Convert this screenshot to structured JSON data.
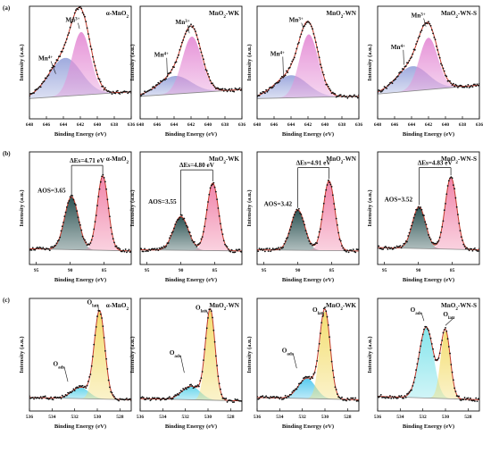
{
  "figure": {
    "row_labels": [
      "(a)",
      "(b)",
      "(c)"
    ],
    "xlabel": "Binding Energy (eV)",
    "ylabel": "Intensity (a.u.)"
  },
  "chart_data": [
    {
      "id": "a1",
      "type": "line",
      "row": 0,
      "col": 0,
      "sample": "α-MnO2",
      "xlim": [
        648,
        636
      ],
      "xticks": [
        648,
        646,
        644,
        642,
        640,
        638,
        636
      ],
      "ylim": [
        0,
        1
      ],
      "baseline": [
        0.18,
        0.24
      ],
      "peaks": [
        {
          "label": "Mn4+",
          "center": 643.8,
          "fwhm": 4.5,
          "height": 0.34,
          "color": "#9aa6dc"
        },
        {
          "label": "Mn3+",
          "center": 641.9,
          "fwhm": 2.6,
          "height": 0.56,
          "color": "#e58fd6"
        }
      ],
      "annotations": [
        {
          "text": "Mn3+",
          "tx": 642.9,
          "ty": 0.86,
          "ax": 642.1,
          "ay": 0.8
        },
        {
          "text": "Mn4+",
          "tx": 646.1,
          "ty": 0.52,
          "ax": 644.9,
          "ay": 0.4
        }
      ]
    },
    {
      "id": "a2",
      "type": "line",
      "row": 0,
      "col": 1,
      "sample": "MnO2-WK",
      "xlim": [
        648,
        636
      ],
      "xticks": [
        648,
        646,
        644,
        642,
        640,
        638,
        636
      ],
      "ylim": [
        0,
        1
      ],
      "baseline": [
        0.2,
        0.26
      ],
      "peaks": [
        {
          "label": "Mn4+",
          "center": 643.9,
          "fwhm": 4.5,
          "height": 0.16,
          "color": "#9aa6dc"
        },
        {
          "label": "Mn3+",
          "center": 641.9,
          "fwhm": 2.7,
          "height": 0.5,
          "color": "#e58fd6"
        }
      ],
      "annotations": [
        {
          "text": "Mn3+",
          "tx": 643.0,
          "ty": 0.84,
          "ax": 642.2,
          "ay": 0.76
        },
        {
          "text": "Mn4+",
          "tx": 645.5,
          "ty": 0.55,
          "ax": 644.8,
          "ay": 0.38
        }
      ]
    },
    {
      "id": "a3",
      "type": "line",
      "row": 0,
      "col": 2,
      "sample": "MnO2-WN",
      "xlim": [
        648,
        636
      ],
      "xticks": [
        648,
        646,
        644,
        642,
        640,
        638,
        636
      ],
      "ylim": [
        0,
        1
      ],
      "baseline": [
        0.18,
        0.2
      ],
      "peaks": [
        {
          "label": "Mn4+",
          "center": 644.0,
          "fwhm": 4.6,
          "height": 0.2,
          "color": "#9aa6dc"
        },
        {
          "label": "Mn3+",
          "center": 641.9,
          "fwhm": 2.6,
          "height": 0.56,
          "color": "#e58fd6"
        }
      ],
      "annotations": [
        {
          "text": "Mn3+",
          "tx": 643.4,
          "ty": 0.86,
          "ax": 642.5,
          "ay": 0.8
        },
        {
          "text": "Mn4+",
          "tx": 645.6,
          "ty": 0.56,
          "ax": 644.9,
          "ay": 0.38
        }
      ]
    },
    {
      "id": "a4",
      "type": "line",
      "row": 0,
      "col": 3,
      "sample": "MnO2-WN-S",
      "xlim": [
        648,
        636
      ],
      "xticks": [
        648,
        646,
        644,
        642,
        640,
        638,
        636
      ],
      "ylim": [
        0,
        1
      ],
      "baseline": [
        0.22,
        0.3
      ],
      "peaks": [
        {
          "label": "Mn4+",
          "center": 643.9,
          "fwhm": 4.4,
          "height": 0.22,
          "color": "#9aa6dc"
        },
        {
          "label": "Mn3+",
          "center": 642.0,
          "fwhm": 2.6,
          "height": 0.46,
          "color": "#e58fd6"
        }
      ],
      "annotations": [
        {
          "text": "Mn3+",
          "tx": 643.2,
          "ty": 0.9,
          "ax": 642.3,
          "ay": 0.82
        },
        {
          "text": "Mn4+",
          "tx": 645.6,
          "ty": 0.62,
          "ax": 644.9,
          "ay": 0.48
        }
      ]
    },
    {
      "id": "b1",
      "type": "line",
      "row": 1,
      "col": 0,
      "sample": "α-MnO2",
      "xlim": [
        96,
        81
      ],
      "xticks": [
        95,
        90,
        85
      ],
      "ylim": [
        0,
        1
      ],
      "baseline": [
        0.14,
        0.12
      ],
      "peaks": [
        {
          "label": "",
          "center": 89.8,
          "fwhm": 2.4,
          "height": 0.47,
          "color": "#234b4b"
        },
        {
          "label": "",
          "center": 85.2,
          "fwhm": 1.9,
          "height": 0.66,
          "color": "#f07fa6"
        }
      ],
      "annotations": [
        {
          "text": "AOS=3.65",
          "tx": 94.8,
          "ty": 0.64
        }
      ],
      "delta": {
        "text": "ΔEs=4.71 eV",
        "x1": 89.8,
        "x2": 85.2,
        "y": 0.88
      }
    },
    {
      "id": "b2",
      "type": "line",
      "row": 1,
      "col": 1,
      "sample": "MnO2-WK",
      "xlim": [
        96,
        81
      ],
      "xticks": [
        95,
        90,
        85
      ],
      "ylim": [
        0,
        1
      ],
      "baseline": [
        0.13,
        0.12
      ],
      "peaks": [
        {
          "label": "",
          "center": 90.0,
          "fwhm": 2.6,
          "height": 0.3,
          "color": "#234b4b"
        },
        {
          "label": "",
          "center": 85.3,
          "fwhm": 2.0,
          "height": 0.6,
          "color": "#f07fa6"
        }
      ],
      "annotations": [
        {
          "text": "AOS=3.55",
          "tx": 94.8,
          "ty": 0.54
        }
      ],
      "delta": {
        "text": "ΔEs=4.80 eV",
        "x1": 90.0,
        "x2": 85.3,
        "y": 0.84
      }
    },
    {
      "id": "b3",
      "type": "line",
      "row": 1,
      "col": 2,
      "sample": "MnO2-WN",
      "xlim": [
        96,
        81
      ],
      "xticks": [
        95,
        90,
        85
      ],
      "ylim": [
        0,
        1
      ],
      "baseline": [
        0.13,
        0.12
      ],
      "peaks": [
        {
          "label": "",
          "center": 90.0,
          "fwhm": 2.4,
          "height": 0.36,
          "color": "#234b4b"
        },
        {
          "label": "",
          "center": 85.4,
          "fwhm": 2.0,
          "height": 0.62,
          "color": "#f07fa6"
        }
      ],
      "annotations": [
        {
          "text": "AOS=3.42",
          "tx": 95.0,
          "ty": 0.52
        }
      ],
      "delta": {
        "text": "ΔEs=4.91 eV",
        "x1": 90.0,
        "x2": 85.4,
        "y": 0.86
      }
    },
    {
      "id": "b4",
      "type": "line",
      "row": 1,
      "col": 3,
      "sample": "MnO2-WN-S",
      "xlim": [
        96,
        81
      ],
      "xticks": [
        95,
        90,
        85
      ],
      "ylim": [
        0,
        1
      ],
      "baseline": [
        0.15,
        0.13
      ],
      "peaks": [
        {
          "label": "",
          "center": 89.9,
          "fwhm": 2.3,
          "height": 0.37,
          "color": "#234b4b"
        },
        {
          "label": "",
          "center": 85.2,
          "fwhm": 2.0,
          "height": 0.64,
          "color": "#f07fa6"
        }
      ],
      "annotations": [
        {
          "text": "AOS=3.52",
          "tx": 95.0,
          "ty": 0.56
        }
      ],
      "delta": {
        "text": "ΔEs=4.83 eV",
        "x1": 89.9,
        "x2": 85.2,
        "y": 0.86
      }
    },
    {
      "id": "c1",
      "type": "line",
      "row": 2,
      "col": 0,
      "sample": "α-MnO2",
      "xlim": [
        536,
        527
      ],
      "xticks": [
        536,
        534,
        532,
        530,
        528
      ],
      "ylim": [
        0,
        1
      ],
      "baseline": [
        0.12,
        0.1
      ],
      "peaks": [
        {
          "label": "Oads",
          "center": 531.5,
          "fwhm": 1.8,
          "height": 0.1,
          "color": "#5fd3ea"
        },
        {
          "label": "Olatt",
          "center": 529.8,
          "fwhm": 1.1,
          "height": 0.78,
          "color": "#f3dc6a"
        }
      ],
      "annotations": [
        {
          "text": "Olatt",
          "tx": 530.4,
          "ty": 0.95,
          "ax": 529.9,
          "ay": 0.89
        },
        {
          "text": "Oads",
          "tx": 533.4,
          "ty": 0.4,
          "ax": 532.6,
          "ay": 0.26
        }
      ]
    },
    {
      "id": "c2",
      "type": "line",
      "row": 2,
      "col": 1,
      "sample": "MnO2-WN",
      "xlim": [
        536,
        527
      ],
      "xticks": [
        536,
        534,
        532,
        530,
        528
      ],
      "ylim": [
        0,
        1
      ],
      "baseline": [
        0.11,
        0.09
      ],
      "peaks": [
        {
          "label": "Oads",
          "center": 531.5,
          "fwhm": 1.9,
          "height": 0.12,
          "color": "#5fd3ea"
        },
        {
          "label": "Olatt",
          "center": 529.8,
          "fwhm": 1.0,
          "height": 0.8,
          "color": "#f3dc6a"
        }
      ],
      "annotations": [
        {
          "text": "Olatt",
          "tx": 530.6,
          "ty": 0.9,
          "ax": 530.0,
          "ay": 0.86
        },
        {
          "text": "Oads",
          "tx": 532.9,
          "ty": 0.5,
          "ax": 532.1,
          "ay": 0.34
        }
      ]
    },
    {
      "id": "c3",
      "type": "line",
      "row": 2,
      "col": 2,
      "sample": "MnO2-WK",
      "xlim": [
        536,
        527
      ],
      "xticks": [
        536,
        534,
        532,
        530,
        528
      ],
      "ylim": [
        0,
        1
      ],
      "baseline": [
        0.12,
        0.1
      ],
      "peaks": [
        {
          "label": "Oads",
          "center": 531.6,
          "fwhm": 1.8,
          "height": 0.18,
          "color": "#4fc8ee"
        },
        {
          "label": "Olatt",
          "center": 530.0,
          "fwhm": 1.1,
          "height": 0.78,
          "color": "#f3dc6a"
        }
      ],
      "annotations": [
        {
          "text": "Olatt",
          "tx": 530.6,
          "ty": 0.88,
          "ax": 530.1,
          "ay": 0.84
        },
        {
          "text": "Oads",
          "tx": 533.3,
          "ty": 0.52,
          "ax": 532.5,
          "ay": 0.38
        }
      ]
    },
    {
      "id": "c4",
      "type": "line",
      "row": 2,
      "col": 3,
      "sample": "MnO2-WN-S",
      "xlim": [
        536,
        527
      ],
      "xticks": [
        536,
        534,
        532,
        530,
        528
      ],
      "ylim": [
        0,
        1
      ],
      "baseline": [
        0.13,
        0.1
      ],
      "peaks": [
        {
          "label": "Oads",
          "center": 531.7,
          "fwhm": 1.5,
          "height": 0.63,
          "color": "#7fe3ea"
        },
        {
          "label": "Olatt",
          "center": 530.0,
          "fwhm": 1.0,
          "height": 0.6,
          "color": "#f3dc6a"
        }
      ],
      "annotations": [
        {
          "text": "Oads",
          "tx": 532.6,
          "ty": 0.88,
          "ax": 531.9,
          "ay": 0.8
        },
        {
          "text": "Olatt",
          "tx": 529.7,
          "ty": 0.84,
          "ax": 530.0,
          "ay": 0.76
        }
      ]
    }
  ]
}
